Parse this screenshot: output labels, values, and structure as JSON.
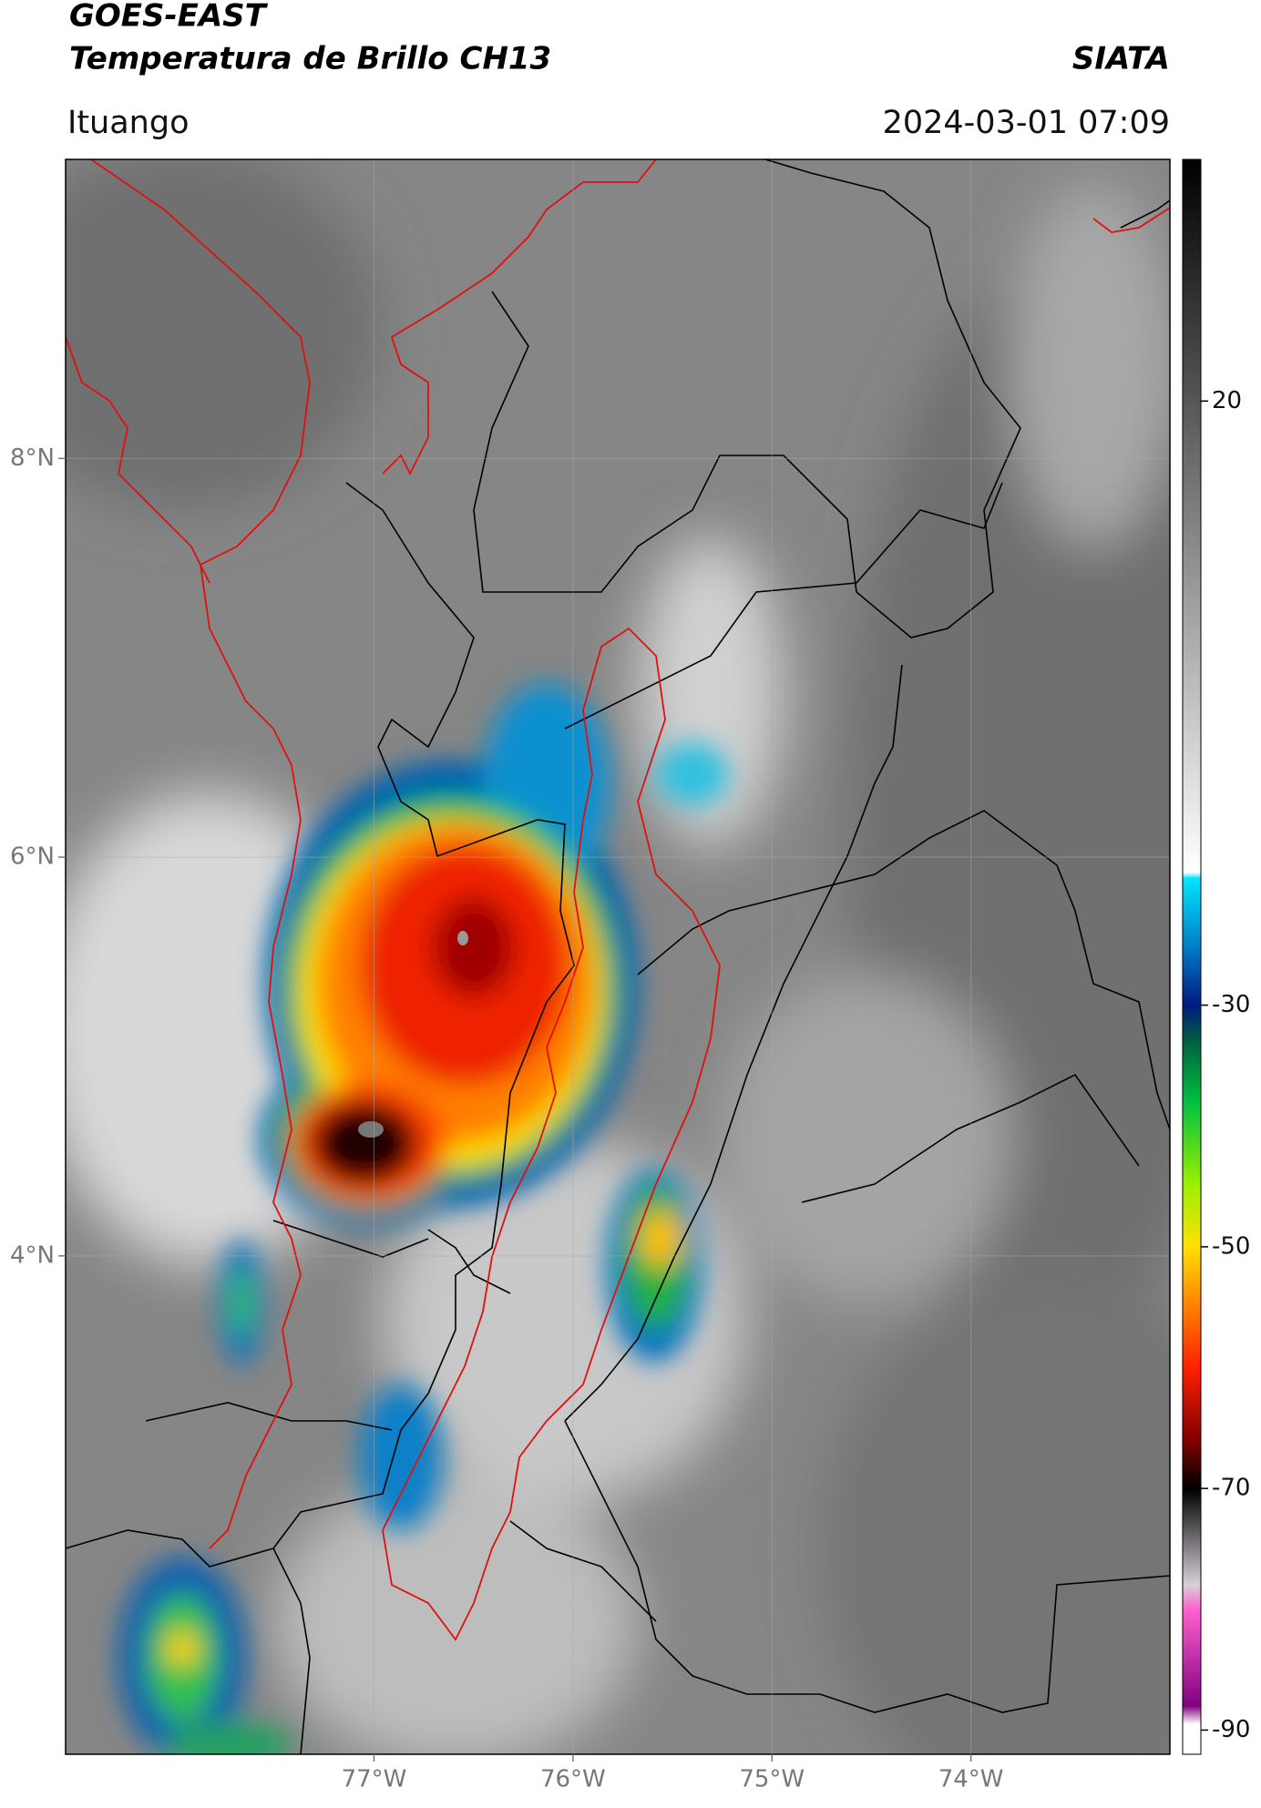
{
  "header": {
    "title": "GOES-EAST",
    "subtitle": "Temperatura de Brillo CH13",
    "source": "SIATA",
    "location": "Ituango",
    "timestamp": "2024-03-01 07:09"
  },
  "map": {
    "xlim": [
      -78.55,
      -73
    ],
    "ylim": [
      1.5,
      9.5
    ],
    "xticks": [
      {
        "value": -77,
        "label": "77°W"
      },
      {
        "value": -76,
        "label": "76°W"
      },
      {
        "value": -75,
        "label": "75°W"
      },
      {
        "value": -74,
        "label": "74°W"
      }
    ],
    "yticks": [
      {
        "value": 8,
        "label": "8°N"
      },
      {
        "value": 6,
        "label": "6°N"
      },
      {
        "value": 4,
        "label": "4°N"
      }
    ],
    "grid": true
  },
  "colorbar": {
    "lim": [
      -92,
      40
    ],
    "ticks": [
      20,
      -30,
      -50,
      -70,
      -90
    ],
    "colormap": [
      {
        "value": 40,
        "color": "#000000"
      },
      {
        "value": -19,
        "color": "#ffffff"
      },
      {
        "value": -19.5,
        "color": "#00e5ff"
      },
      {
        "value": -25,
        "color": "#0080c8"
      },
      {
        "value": -30,
        "color": "#001a80"
      },
      {
        "value": -33,
        "color": "#006040"
      },
      {
        "value": -38,
        "color": "#00c040"
      },
      {
        "value": -45,
        "color": "#a0f000"
      },
      {
        "value": -50,
        "color": "#ffe000"
      },
      {
        "value": -55,
        "color": "#ff8000"
      },
      {
        "value": -60,
        "color": "#ff2000"
      },
      {
        "value": -66,
        "color": "#800000"
      },
      {
        "value": -70,
        "color": "#000000"
      },
      {
        "value": -78,
        "color": "#d8d0d8"
      },
      {
        "value": -80,
        "color": "#ff60d0"
      },
      {
        "value": -88,
        "color": "#800080"
      },
      {
        "value": -89.5,
        "color": "#ffffff"
      },
      {
        "value": -92,
        "color": "#ffffff"
      }
    ]
  }
}
